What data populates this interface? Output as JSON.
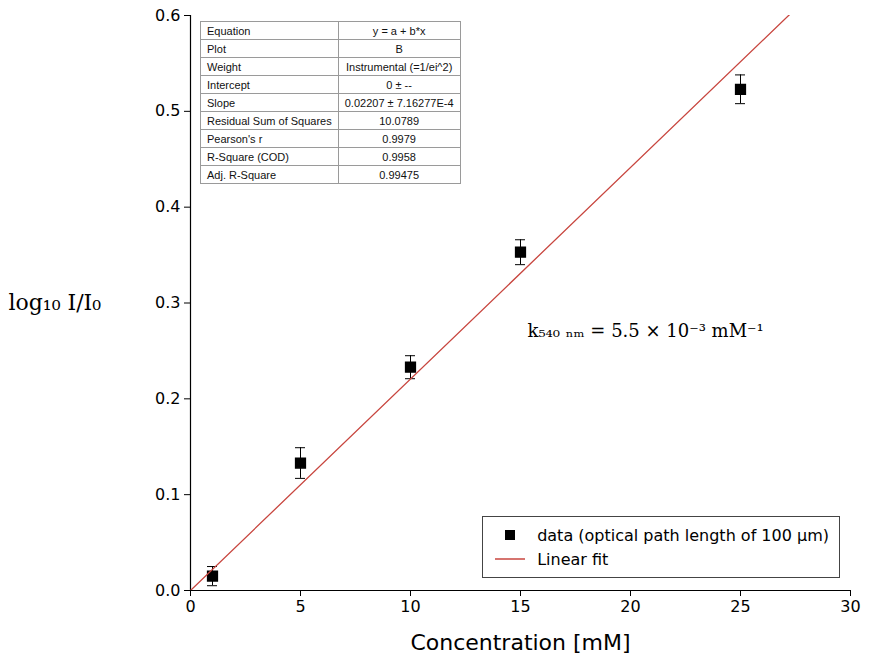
{
  "chart_data": {
    "type": "scatter",
    "x_label": "Concentration [mM]",
    "y_label": "log₁₀ I/I₀",
    "xlim": [
      0,
      30
    ],
    "ylim": [
      0,
      0.6
    ],
    "xticks": [
      0,
      5,
      10,
      15,
      20,
      25,
      30
    ],
    "yticks": [
      {
        "value": 0,
        "label": "0.0"
      },
      0.1,
      0.2,
      0.3,
      0.4,
      0.5,
      0.6
    ],
    "series": [
      {
        "name": "data (optical path length of 100 μm)",
        "type": "scatter",
        "color": "#000000",
        "marker": "square",
        "x": [
          1,
          5,
          10,
          15,
          25
        ],
        "values": [
          0.015,
          0.133,
          0.233,
          0.353,
          0.523
        ],
        "errors": [
          0.01,
          0.016,
          0.012,
          0.013,
          0.015
        ]
      },
      {
        "name": "Linear fit",
        "type": "line",
        "color": "#c8463f",
        "line_style": "solid",
        "intercept": 0,
        "slope": 0.02207
      }
    ],
    "annotations": [
      "k₅₄₀ ₙₘ = 5.5 × 10⁻³ mM⁻¹"
    ],
    "fit_table": [
      [
        "Equation",
        "y = a + b*x"
      ],
      [
        "Plot",
        "B"
      ],
      [
        "Weight",
        "Instrumental (=1/ei^2)"
      ],
      [
        "Intercept",
        "0 ± --"
      ],
      [
        "Slope",
        "0.02207 ± 7.16277E-4"
      ],
      [
        "Residual Sum of Squares",
        "10.0789"
      ],
      [
        "Pearson's r",
        "0.9979"
      ],
      [
        "R-Square (COD)",
        "0.9958"
      ],
      [
        "Adj. R-Square",
        "0.99475"
      ]
    ],
    "legend": "lower right"
  }
}
